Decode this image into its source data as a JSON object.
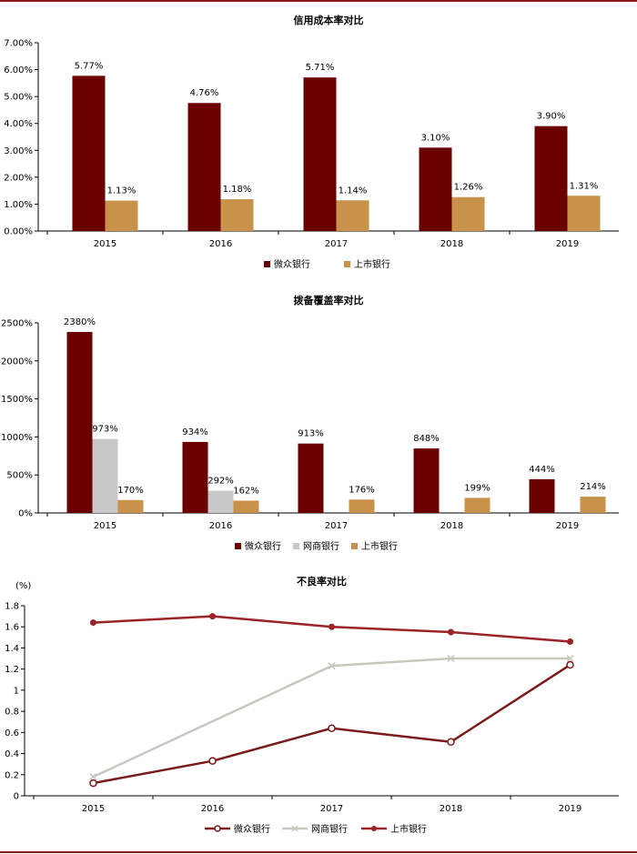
{
  "colors": {
    "weizhong": "#6b0000",
    "wangshang": "#c8c8c8",
    "listed": "#c8924a",
    "line_weizhong": "#7a1a1a",
    "line_wangshang": "#c8c8c0",
    "line_listed": "#9b2226",
    "frame": "#8b1a1a"
  },
  "chart_data": [
    {
      "type": "bar",
      "title": "信用成本率对比",
      "categories": [
        "2015",
        "2016",
        "2017",
        "2018",
        "2019"
      ],
      "ylim": [
        0,
        7
      ],
      "y_ticks": [
        "0.00%",
        "1.00%",
        "2.00%",
        "3.00%",
        "4.00%",
        "5.00%",
        "6.00%",
        "7.00%"
      ],
      "series": [
        {
          "name": "微众银行",
          "color_key": "weizhong",
          "values": [
            5.77,
            4.76,
            5.71,
            3.1,
            3.9
          ],
          "labels": [
            "5.77%",
            "4.76%",
            "5.71%",
            "3.10%",
            "3.90%"
          ]
        },
        {
          "name": "上市银行",
          "color_key": "listed",
          "values": [
            1.13,
            1.18,
            1.14,
            1.26,
            1.31
          ],
          "labels": [
            "1.13%",
            "1.18%",
            "1.14%",
            "1.26%",
            "1.31%"
          ]
        }
      ],
      "legend_position": "bottom",
      "grid": false
    },
    {
      "type": "bar",
      "title": "拨备覆盖率对比",
      "categories": [
        "2015",
        "2016",
        "2017",
        "2018",
        "2019"
      ],
      "ylim": [
        0,
        2500
      ],
      "y_ticks": [
        "0%",
        "500%",
        "1000%",
        "1500%",
        "2000%",
        "2500%"
      ],
      "series": [
        {
          "name": "微众银行",
          "color_key": "weizhong",
          "values": [
            2380,
            934,
            913,
            848,
            444
          ],
          "labels": [
            "2380%",
            "934%",
            "913%",
            "848%",
            "444%"
          ]
        },
        {
          "name": "网商银行",
          "color_key": "wangshang",
          "values": [
            973,
            292,
            null,
            null,
            null
          ],
          "labels": [
            "973%",
            "292%",
            "",
            "",
            ""
          ]
        },
        {
          "name": "上市银行",
          "color_key": "listed",
          "values": [
            170,
            162,
            176,
            199,
            214
          ],
          "labels": [
            "170%",
            "162%",
            "176%",
            "199%",
            "214%"
          ]
        }
      ],
      "legend_position": "bottom",
      "grid": false
    },
    {
      "type": "line",
      "title": "不良率对比",
      "unit_label": "(%)",
      "categories": [
        "2015",
        "2016",
        "2017",
        "2018",
        "2019"
      ],
      "ylim": [
        0,
        1.8
      ],
      "y_ticks": [
        "0",
        "0.2",
        "0.4",
        "0.6",
        "0.8",
        "1",
        "1.2",
        "1.4",
        "1.6",
        "1.8"
      ],
      "series": [
        {
          "name": "微众银行",
          "color_key": "line_weizhong",
          "marker": "open-circle",
          "values": [
            0.12,
            0.33,
            0.64,
            0.51,
            1.24
          ]
        },
        {
          "name": "网商银行",
          "color_key": "line_wangshang",
          "marker": "x",
          "values": [
            0.18,
            null,
            1.23,
            1.3,
            1.3
          ]
        },
        {
          "name": "上市银行",
          "color_key": "line_listed",
          "marker": "filled-circle",
          "values": [
            1.64,
            1.7,
            1.6,
            1.55,
            1.46
          ]
        }
      ],
      "legend_position": "bottom",
      "grid": false
    }
  ]
}
